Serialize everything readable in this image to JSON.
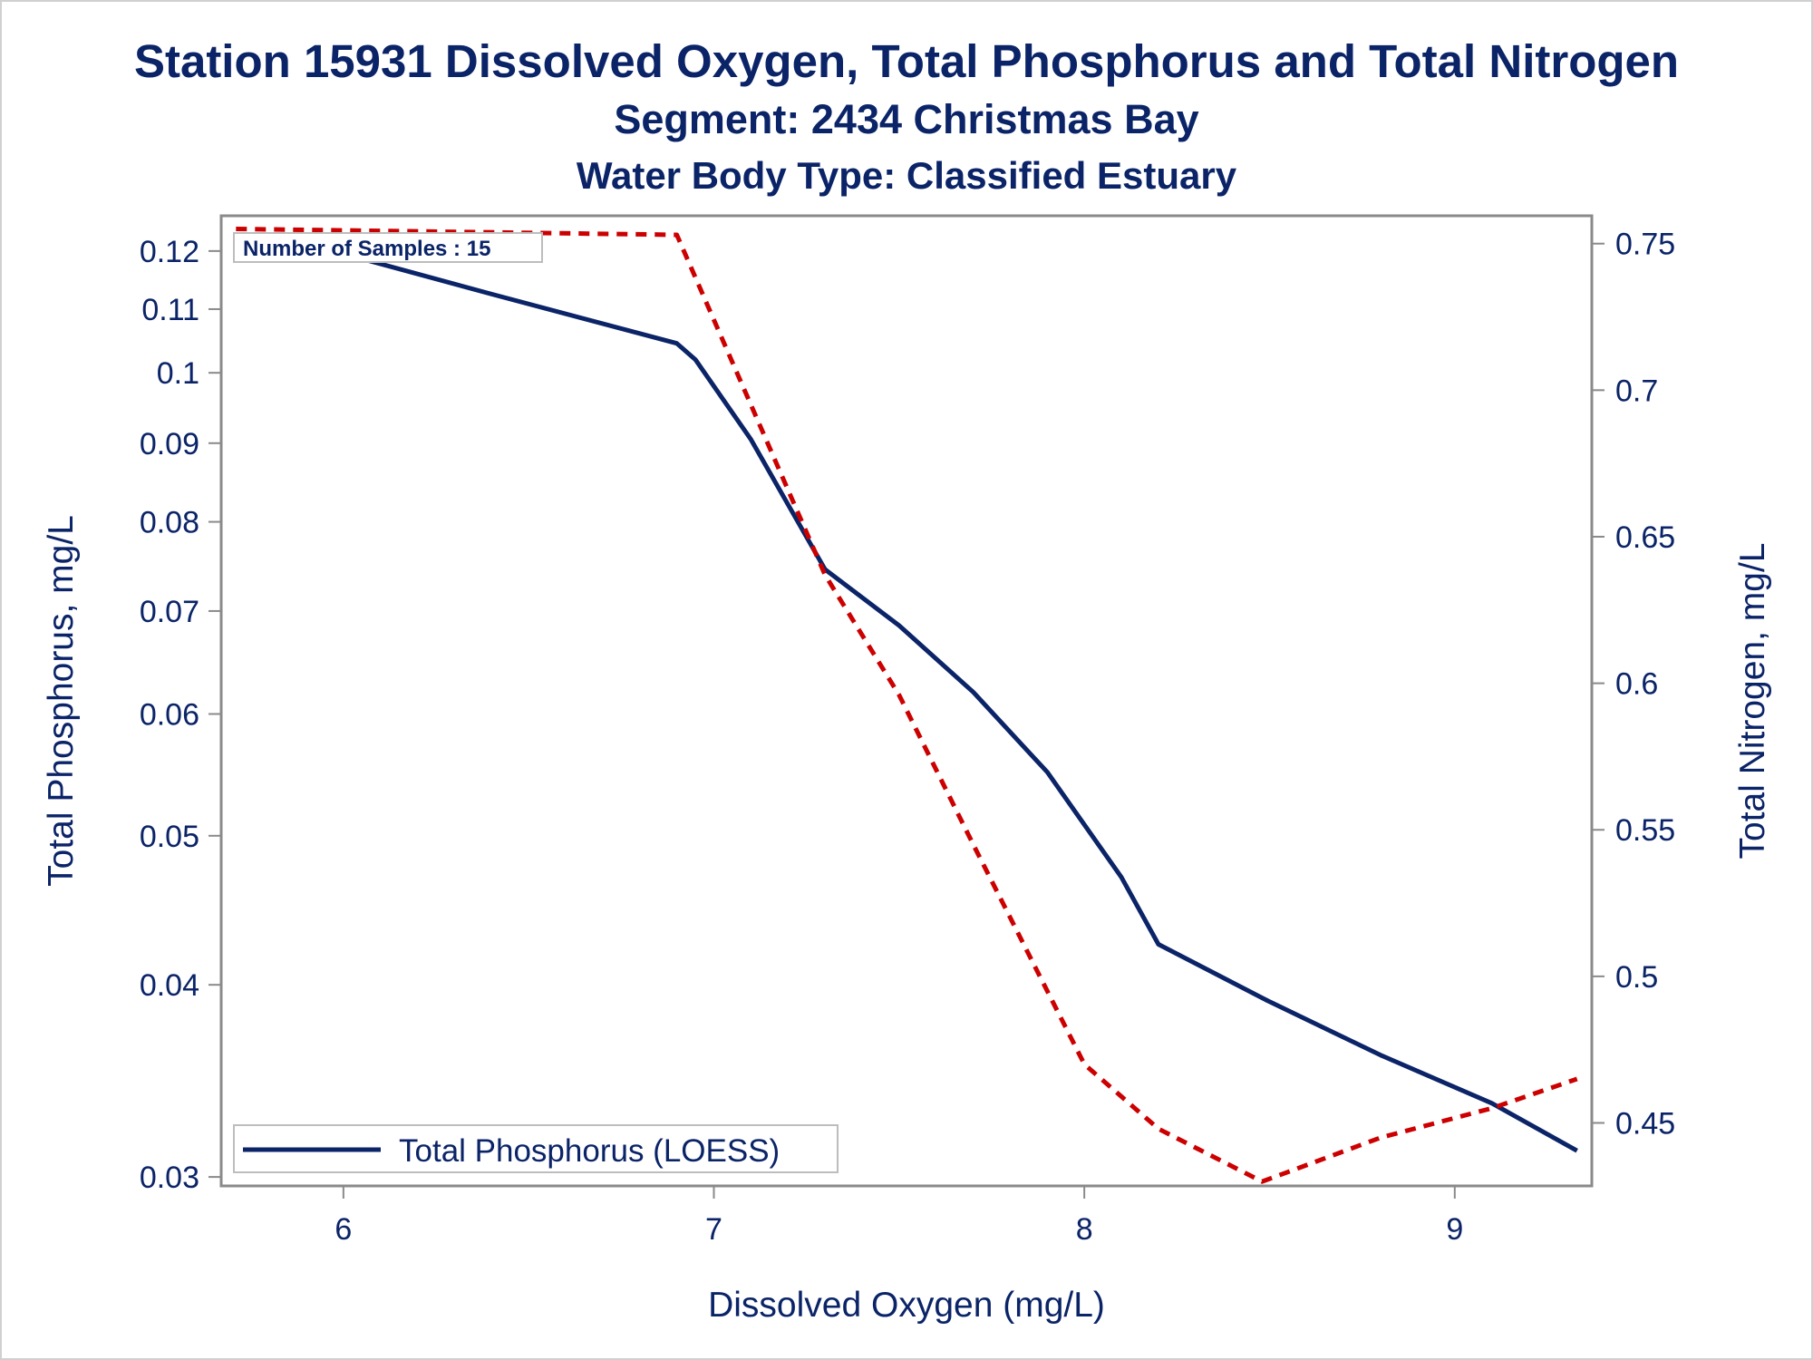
{
  "titles": {
    "line1": "Station 15931  Dissolved Oxygen, Total Phosphorus and Total Nitrogen",
    "line2": "Segment: 2434  Christmas Bay",
    "line3": "Water Body Type: Classified Estuary"
  },
  "inset": {
    "text": "Number of Samples : 15"
  },
  "legend": {
    "label": "Total Phosphorus (LOESS)"
  },
  "colors": {
    "phosphorus": "#0b2468",
    "nitrogen": "#cc0000",
    "text": "#0b2468",
    "axis": "#8a8a8a"
  },
  "chart_data": {
    "type": "line",
    "xlabel": "Dissolved Oxygen (mg/L)",
    "ylabel": "Total Phosphorus, mg/L",
    "y2label": "Total Nitrogen, mg/L",
    "x_ticks": [
      6,
      7,
      8,
      9
    ],
    "y_ticks": [
      0.03,
      0.04,
      0.05,
      0.06,
      0.07,
      0.08,
      0.09,
      0.1,
      0.11,
      0.12
    ],
    "y_tick_labels": [
      "0.03",
      "0.04",
      "0.05",
      "0.06",
      "0.07",
      "0.08",
      "0.09",
      "0.1",
      "0.11",
      "0.12"
    ],
    "y2_ticks": [
      0.45,
      0.5,
      0.55,
      0.6,
      0.65,
      0.7,
      0.75
    ],
    "y2_tick_labels": [
      "0.45",
      "0.5",
      "0.55",
      "0.6",
      "0.65",
      "0.7",
      "0.75"
    ],
    "xlim": [
      5.67,
      9.37
    ],
    "ylim": [
      0.0296,
      0.1265
    ],
    "y_scale": "log",
    "y2lim": [
      0.4285,
      0.7595
    ],
    "grid": false,
    "legend_position": "bottom-left",
    "series": [
      {
        "name": "Total Phosphorus (LOESS)",
        "axis": "left",
        "style": "solid",
        "x": [
          5.71,
          6.0,
          6.4,
          6.9,
          6.95,
          7.1,
          7.3,
          7.5,
          7.7,
          7.9,
          8.1,
          8.2,
          8.5,
          8.8,
          9.1,
          9.33
        ],
        "y": [
          0.123,
          0.1195,
          0.1125,
          0.1045,
          0.102,
          0.0905,
          0.0745,
          0.0685,
          0.062,
          0.055,
          0.047,
          0.0425,
          0.039,
          0.036,
          0.0335,
          0.0312
        ]
      },
      {
        "name": "",
        "axis": "right",
        "style": "dashed",
        "x": [
          5.71,
          6.9,
          7.3,
          7.5,
          7.7,
          7.9,
          8.0,
          8.2,
          8.48,
          8.8,
          9.1,
          9.33
        ],
        "y": [
          0.755,
          0.753,
          0.637,
          0.596,
          0.545,
          0.495,
          0.47,
          0.448,
          0.43,
          0.445,
          0.455,
          0.465
        ]
      }
    ]
  }
}
